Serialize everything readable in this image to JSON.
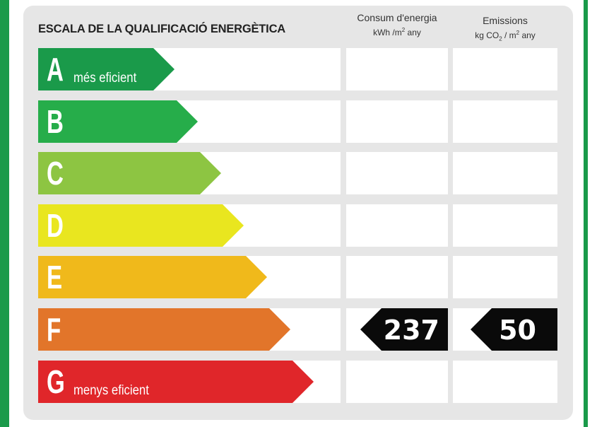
{
  "title": "ESCALA DE LA QUALIFICACIÓ ENERGÈTICA",
  "columns": {
    "consum": {
      "label": "Consum d'energia",
      "unit_pre": "kWh /m",
      "unit_sup": "2",
      "unit_post": " any"
    },
    "emissions": {
      "label": "Emissions",
      "unit_pre": "kg CO",
      "unit_sub": "2",
      "unit_mid": " / m",
      "unit_sup": "2",
      "unit_post": " any"
    }
  },
  "ratings": [
    {
      "letter": "A",
      "desc": "més eficient",
      "color": "#1a9a4a"
    },
    {
      "letter": "B",
      "desc": "",
      "color": "#26ad4a"
    },
    {
      "letter": "C",
      "desc": "",
      "color": "#8dc542"
    },
    {
      "letter": "D",
      "desc": "",
      "color": "#e9e61f"
    },
    {
      "letter": "E",
      "desc": "",
      "color": "#f0b91b"
    },
    {
      "letter": "F",
      "desc": "",
      "color": "#e2752a"
    },
    {
      "letter": "G",
      "desc": "menys eficient",
      "color": "#e0262a"
    }
  ],
  "current": {
    "rating": "F",
    "consum": "237",
    "emissions": "50"
  }
}
